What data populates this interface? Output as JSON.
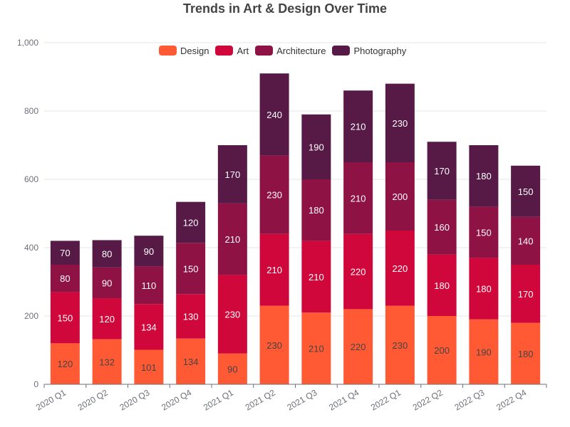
{
  "chart_data": {
    "type": "bar",
    "stacked": true,
    "title": "Trends in Art & Design Over Time",
    "categories": [
      "2020 Q1",
      "2020 Q2",
      "2020 Q3",
      "2020 Q4",
      "2021 Q1",
      "2021 Q2",
      "2021 Q3",
      "2021 Q4",
      "2022 Q1",
      "2022 Q2",
      "2022 Q3",
      "2022 Q4"
    ],
    "series": [
      {
        "name": "Design",
        "color": "#ff5a33",
        "label_color": "#444444",
        "values": [
          120,
          132,
          101,
          134,
          90,
          230,
          210,
          220,
          230,
          200,
          190,
          180
        ]
      },
      {
        "name": "Art",
        "color": "#d0073a",
        "label_color": "#ffffff",
        "values": [
          150,
          120,
          134,
          130,
          230,
          210,
          210,
          220,
          220,
          180,
          180,
          170
        ]
      },
      {
        "name": "Architecture",
        "color": "#8f1245",
        "label_color": "#ffffff",
        "values": [
          80,
          90,
          110,
          150,
          210,
          230,
          180,
          210,
          200,
          160,
          150,
          140
        ]
      },
      {
        "name": "Photography",
        "color": "#571a47",
        "label_color": "#ffffff",
        "values": [
          70,
          80,
          90,
          120,
          170,
          240,
          190,
          210,
          230,
          170,
          180,
          150
        ]
      }
    ],
    "y_ticks": [
      "0",
      "200",
      "400",
      "600",
      "800",
      "1,000"
    ],
    "ylim": [
      0,
      1000
    ],
    "grid": true,
    "legend_position": "top-center"
  }
}
